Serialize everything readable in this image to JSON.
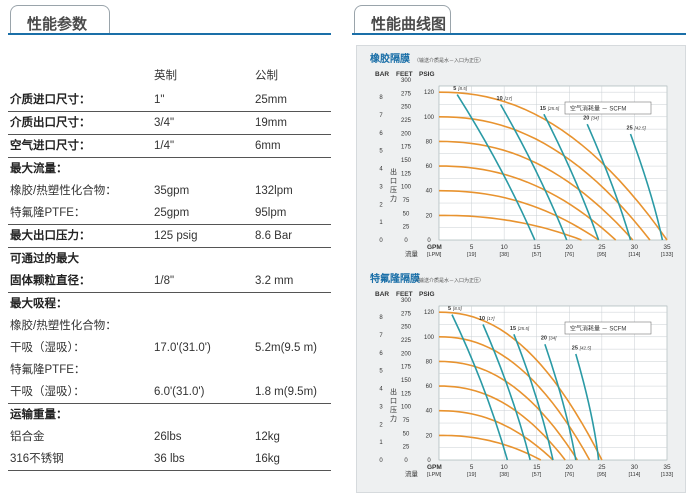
{
  "tabs": {
    "params": "性能参数",
    "curves": "性能曲线图"
  },
  "params_table": {
    "header": {
      "col_imperial": "英制",
      "col_metric": "公制"
    },
    "rows": [
      {
        "label": "介质进口尺寸：",
        "imperial": "1\"",
        "metric": "25mm",
        "bold": true,
        "sep": true
      },
      {
        "label": "介质出口尺寸：",
        "imperial": "3/4\"",
        "metric": "19mm",
        "bold": true,
        "sep": true
      },
      {
        "label": "空气进口尺寸：",
        "imperial": "1/4\"",
        "metric": "6mm",
        "bold": true,
        "sep": true
      },
      {
        "label": "最大流量：",
        "imperial": "",
        "metric": "",
        "bold": true,
        "sep": false
      },
      {
        "label": "橡胶/热塑性化合物：",
        "imperial": "35gpm",
        "metric": "132lpm",
        "bold": false,
        "sep": false
      },
      {
        "label": "特氟隆PTFE：",
        "imperial": "25gpm",
        "metric": "95lpm",
        "bold": false,
        "sep": true
      },
      {
        "label": "最大出口压力：",
        "imperial": "125 psig",
        "metric": "8.6 Bar",
        "bold": true,
        "sep": true
      },
      {
        "label": "可通过的最大",
        "imperial": "",
        "metric": "",
        "bold": true,
        "sep": false
      },
      {
        "label": "固体颗粒直径：",
        "imperial": "1/8\"",
        "metric": "3.2 mm",
        "bold": true,
        "sep": true
      },
      {
        "label": "最大吸程：",
        "imperial": "",
        "metric": "",
        "bold": true,
        "sep": false
      },
      {
        "label": "橡胶/热塑性化合物：",
        "imperial": "",
        "metric": "",
        "bold": false,
        "sep": false
      },
      {
        "label": "干吸（湿吸）：",
        "imperial": "17.0'(31.0')",
        "metric": "5.2m(9.5 m)",
        "bold": false,
        "sep": false
      },
      {
        "label": "特氟隆PTFE：",
        "imperial": "",
        "metric": "",
        "bold": false,
        "sep": false
      },
      {
        "label": "干吸（湿吸）：",
        "imperial": "6.0'(31.0')",
        "metric": "1.8 m(9.5m)",
        "bold": false,
        "sep": true
      },
      {
        "label": "运输重量：",
        "imperial": "",
        "metric": "",
        "bold": true,
        "sep": false
      },
      {
        "label": "铝合金",
        "imperial": "26lbs",
        "metric": "12kg",
        "bold": false,
        "sep": false
      },
      {
        "label": "316不锈钢",
        "imperial": "36 lbs",
        "metric": "16kg",
        "bold": false,
        "sep": true
      }
    ]
  },
  "charts": [
    {
      "title": "橡胶隔膜",
      "note": "（输送介质是水－入口为正压）",
      "axis_heads": {
        "bar": "BAR",
        "feet": "FEET",
        "psig": "PSIG"
      },
      "bar_ticks": [
        "8",
        "7",
        "6",
        "5",
        "4",
        "3",
        "2",
        "1",
        "0"
      ],
      "feet_ticks": [
        "300",
        "275",
        "250",
        "225",
        "200",
        "175",
        "150",
        "125",
        "100",
        "75",
        "50",
        "25",
        "0"
      ],
      "psig_ticks": [
        "120",
        "100",
        "80",
        "60",
        "40",
        "20",
        "0"
      ],
      "ylabel": "出口压力",
      "xlabel": "流量",
      "gpm_label": "GPM",
      "lpm_label": "[LPM]",
      "x_ticks": [
        "5",
        "10",
        "15",
        "20",
        "25",
        "30",
        "35"
      ],
      "x_lpm": [
        "[19]",
        "[38]",
        "[57]",
        "[76]",
        "[95]",
        "[114]",
        "[133]"
      ],
      "air_legend": "空气消耗量 － SCFM",
      "scfm_labels": [
        {
          "n": "5",
          "sub": "[8.5]"
        },
        {
          "n": "10",
          "sub": "[17]"
        },
        {
          "n": "15",
          "sub": "[25.5]"
        },
        {
          "n": "20",
          "sub": "[34]"
        },
        {
          "n": "25",
          "sub": "[42.5]"
        }
      ],
      "chart_data": {
        "type": "line",
        "xmax_gpm": 35,
        "ymax_psig": 125,
        "pressure_curves_psig_at_0gpm": [
          120,
          100,
          80,
          60,
          40,
          20
        ],
        "max_flow_gpm": 35,
        "air_curves_scfm": [
          5,
          10,
          15,
          20,
          25
        ]
      }
    },
    {
      "title": "特氟隆隔膜",
      "note": "（输送介质是水－入口为正压）",
      "axis_heads": {
        "bar": "BAR",
        "feet": "FEET",
        "psig": "PSIG"
      },
      "bar_ticks": [
        "8",
        "7",
        "6",
        "5",
        "4",
        "3",
        "2",
        "1",
        "0"
      ],
      "feet_ticks": [
        "300",
        "275",
        "250",
        "225",
        "200",
        "175",
        "150",
        "125",
        "100",
        "75",
        "50",
        "25",
        "0"
      ],
      "psig_ticks": [
        "120",
        "100",
        "80",
        "60",
        "40",
        "20",
        "0"
      ],
      "ylabel": "出口压力",
      "xlabel": "流量",
      "gpm_label": "GPM",
      "lpm_label": "[LPM]",
      "x_ticks": [
        "5",
        "10",
        "15",
        "20",
        "25",
        "30",
        "35"
      ],
      "x_lpm": [
        "[19]",
        "[38]",
        "[57]",
        "[76]",
        "[95]",
        "[114]",
        "[133]"
      ],
      "air_legend": "空气消耗量 － SCFM",
      "scfm_labels": [
        {
          "n": "5",
          "sub": "[8.5]"
        },
        {
          "n": "10",
          "sub": "[17]"
        },
        {
          "n": "15",
          "sub": "[25.5]"
        },
        {
          "n": "20",
          "sub": "[34]"
        },
        {
          "n": "25",
          "sub": "[42.5]"
        }
      ],
      "chart_data": {
        "type": "line",
        "xmax_gpm": 35,
        "ymax_psig": 125,
        "pressure_curves_psig_at_0gpm": [
          120,
          100,
          80,
          60,
          40,
          20
        ],
        "max_flow_gpm": 25,
        "air_curves_scfm": [
          5,
          10,
          15,
          20,
          25
        ]
      }
    }
  ]
}
